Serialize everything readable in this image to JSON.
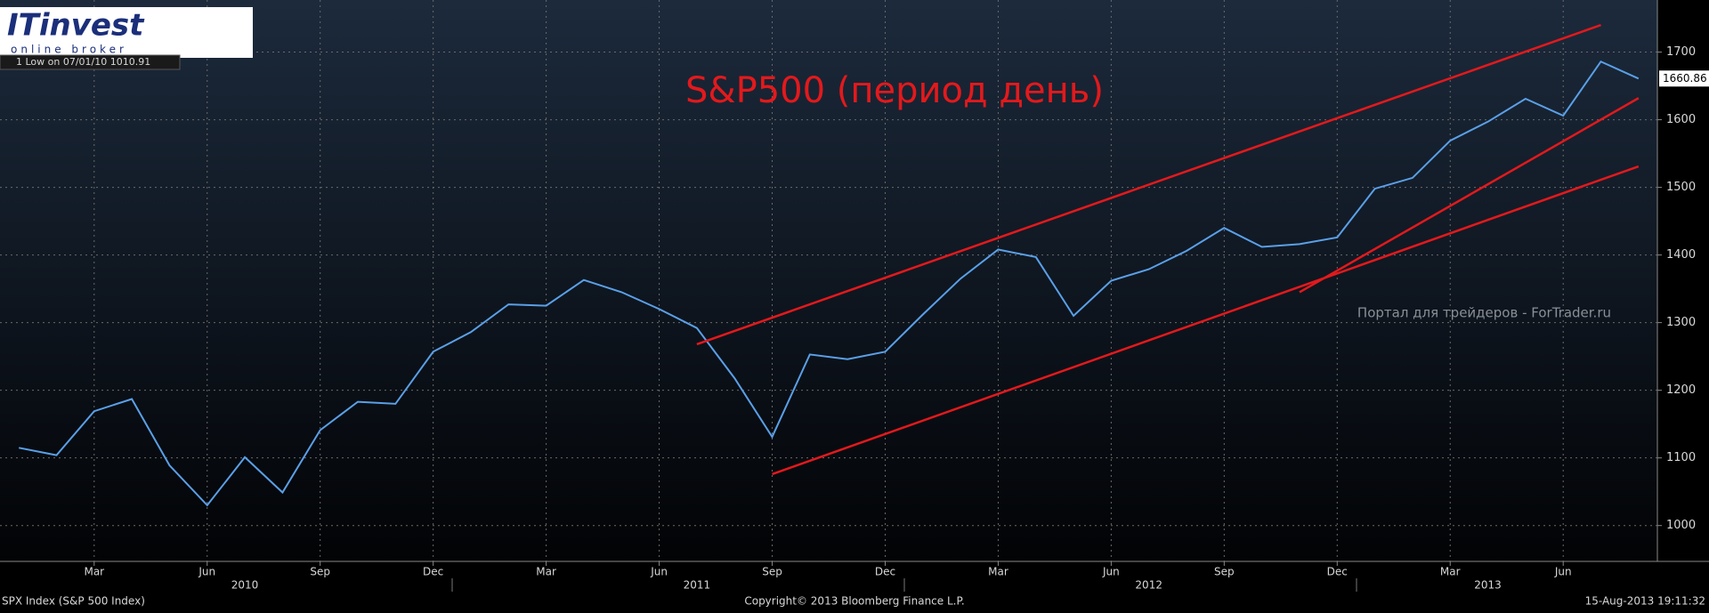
{
  "chart_data": {
    "type": "line",
    "title": "S&P500 (период день)",
    "title_color": "#e3191c",
    "logo": {
      "name": "ITinvest",
      "tagline": "online broker"
    },
    "legend_text": "1 Low on 07/01/10  1010.91",
    "watermark": "Портал для трейдеров - ForTrader.ru",
    "footer": {
      "left": "SPX Index (S&P 500 Index)",
      "center": "Copyright© 2013 Bloomberg Finance L.P.",
      "right": "15-Aug-2013 19:11:32"
    },
    "x": [
      "2010-01",
      "2010-02",
      "2010-03",
      "2010-04",
      "2010-05",
      "2010-06",
      "2010-07",
      "2010-08",
      "2010-09",
      "2010-10",
      "2010-11",
      "2010-12",
      "2011-01",
      "2011-02",
      "2011-03",
      "2011-04",
      "2011-05",
      "2011-06",
      "2011-07",
      "2011-08",
      "2011-09",
      "2011-10",
      "2011-11",
      "2011-12",
      "2012-01",
      "2012-02",
      "2012-03",
      "2012-04",
      "2012-05",
      "2012-06",
      "2012-07",
      "2012-08",
      "2012-09",
      "2012-10",
      "2012-11",
      "2012-12",
      "2013-01",
      "2013-02",
      "2013-03",
      "2013-04",
      "2013-05",
      "2013-06",
      "2013-07",
      "2013-08"
    ],
    "series": [
      {
        "name": "SPX Index",
        "color": "#5aa0e8",
        "values": [
          1115,
          1104,
          1169,
          1187,
          1089,
          1030,
          1101,
          1049,
          1141,
          1183,
          1180,
          1257,
          1286,
          1327,
          1325,
          1363,
          1345,
          1320,
          1292,
          1218,
          1131,
          1253,
          1246,
          1257,
          1312,
          1365,
          1408,
          1397,
          1310,
          1362,
          1379,
          1406,
          1440,
          1412,
          1416,
          1426,
          1498,
          1514,
          1569,
          1597,
          1631,
          1606,
          1686,
          1660.86
        ]
      }
    ],
    "trendlines": [
      {
        "x": [
          "2011-07",
          "2013-07"
        ],
        "y": [
          1268,
          1740
        ]
      },
      {
        "x": [
          "2011-09",
          "2013-08"
        ],
        "y": [
          1076,
          1531
        ]
      },
      {
        "x": [
          "2012-11",
          "2013-08"
        ],
        "y": [
          1345,
          1632
        ]
      }
    ],
    "trendline_color": "#e3191c",
    "xlim": [
      "2010-01",
      "2013-09"
    ],
    "xticks": [
      {
        "value": "2010-03",
        "label": "Mar"
      },
      {
        "value": "2010-06",
        "label": "Jun"
      },
      {
        "value": "2010-09",
        "label": "Sep"
      },
      {
        "value": "2010-12",
        "label": "Dec"
      },
      {
        "value": "2011-03",
        "label": "Mar"
      },
      {
        "value": "2011-06",
        "label": "Jun"
      },
      {
        "value": "2011-09",
        "label": "Sep"
      },
      {
        "value": "2011-12",
        "label": "Dec"
      },
      {
        "value": "2012-03",
        "label": "Mar"
      },
      {
        "value": "2012-06",
        "label": "Jun"
      },
      {
        "value": "2012-09",
        "label": "Sep"
      },
      {
        "value": "2012-12",
        "label": "Dec"
      },
      {
        "value": "2013-03",
        "label": "Mar"
      },
      {
        "value": "2013-06",
        "label": "Jun"
      }
    ],
    "year_labels": [
      {
        "value": "2010-07",
        "label": "2010"
      },
      {
        "value": "2011-07",
        "label": "2011"
      },
      {
        "value": "2012-07",
        "label": "2012"
      },
      {
        "value": "2013-04",
        "label": "2013"
      }
    ],
    "ylim": [
      947,
      1777
    ],
    "yticks": [
      1000,
      1100,
      1200,
      1300,
      1400,
      1500,
      1600,
      1700
    ],
    "grid": true
  }
}
